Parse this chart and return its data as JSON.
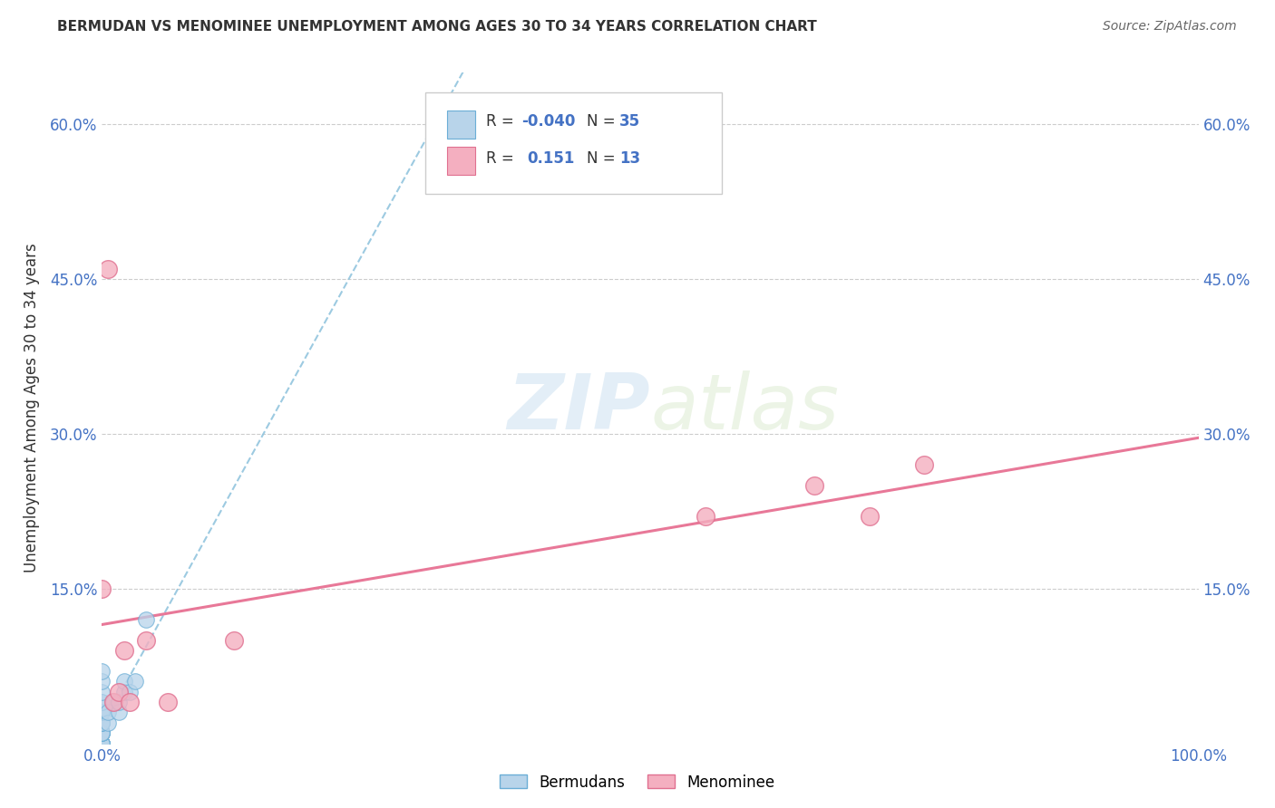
{
  "title": "BERMUDAN VS MENOMINEE UNEMPLOYMENT AMONG AGES 30 TO 34 YEARS CORRELATION CHART",
  "source": "Source: ZipAtlas.com",
  "ylabel": "Unemployment Among Ages 30 to 34 years",
  "xlim": [
    0.0,
    1.0
  ],
  "ylim": [
    0.0,
    0.65
  ],
  "yticks": [
    0.0,
    0.15,
    0.3,
    0.45,
    0.6
  ],
  "ytick_labels": [
    "",
    "15.0%",
    "30.0%",
    "45.0%",
    "60.0%"
  ],
  "xticks": [
    0.0,
    0.25,
    0.5,
    0.75,
    1.0
  ],
  "xtick_labels": [
    "0.0%",
    "",
    "",
    "",
    "100.0%"
  ],
  "bermudans_x": [
    0.0,
    0.0,
    0.0,
    0.0,
    0.0,
    0.0,
    0.0,
    0.0,
    0.0,
    0.0,
    0.0,
    0.0,
    0.0,
    0.0,
    0.0,
    0.0,
    0.0,
    0.0,
    0.0,
    0.0,
    0.0,
    0.0,
    0.0,
    0.0,
    0.0,
    0.005,
    0.005,
    0.01,
    0.015,
    0.015,
    0.02,
    0.02,
    0.025,
    0.03,
    0.04
  ],
  "bermudans_y": [
    0.0,
    0.0,
    0.0,
    0.0,
    0.0,
    0.0,
    0.0,
    0.0,
    0.0,
    0.0,
    0.01,
    0.01,
    0.01,
    0.01,
    0.01,
    0.02,
    0.02,
    0.02,
    0.03,
    0.03,
    0.04,
    0.04,
    0.05,
    0.06,
    0.07,
    0.02,
    0.03,
    0.04,
    0.03,
    0.04,
    0.05,
    0.06,
    0.05,
    0.06,
    0.12
  ],
  "menominee_x": [
    0.0,
    0.005,
    0.01,
    0.015,
    0.02,
    0.025,
    0.04,
    0.06,
    0.12,
    0.55,
    0.65,
    0.7,
    0.75
  ],
  "menominee_y": [
    0.15,
    0.46,
    0.04,
    0.05,
    0.09,
    0.04,
    0.1,
    0.04,
    0.1,
    0.22,
    0.25,
    0.22,
    0.27
  ],
  "bermudan_color": "#b8d4ea",
  "bermudan_edge_color": "#6baed6",
  "menominee_color": "#f4afc0",
  "menominee_edge_color": "#e07090",
  "bermudan_line_color": "#92c5de",
  "menominee_line_color": "#e87898",
  "bermudan_R": -0.04,
  "bermudan_N": 35,
  "menominee_R": 0.151,
  "menominee_N": 13,
  "watermark_zip": "ZIP",
  "watermark_atlas": "atlas",
  "background_color": "#ffffff",
  "grid_color": "#cccccc",
  "tick_color": "#4472c4",
  "text_color": "#333333"
}
